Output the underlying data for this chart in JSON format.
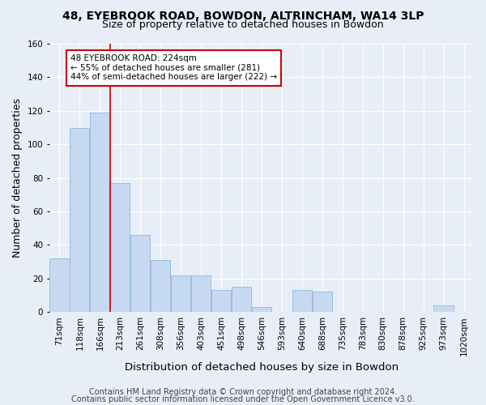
{
  "title": "48, EYEBROOK ROAD, BOWDON, ALTRINCHAM, WA14 3LP",
  "subtitle": "Size of property relative to detached houses in Bowdon",
  "xlabel": "Distribution of detached houses by size in Bowdon",
  "ylabel": "Number of detached properties",
  "footer1": "Contains HM Land Registry data © Crown copyright and database right 2024.",
  "footer2": "Contains public sector information licensed under the Open Government Licence v3.0.",
  "bar_labels": [
    "71sqm",
    "118sqm",
    "166sqm",
    "213sqm",
    "261sqm",
    "308sqm",
    "356sqm",
    "403sqm",
    "451sqm",
    "498sqm",
    "546sqm",
    "593sqm",
    "640sqm",
    "688sqm",
    "735sqm",
    "783sqm",
    "830sqm",
    "878sqm",
    "925sqm",
    "973sqm",
    "1020sqm"
  ],
  "bar_values": [
    32,
    110,
    119,
    77,
    46,
    31,
    22,
    22,
    13,
    15,
    3,
    0,
    13,
    12,
    0,
    0,
    0,
    0,
    0,
    4,
    0
  ],
  "bar_color": "#c6d9f0",
  "bar_edge_color": "#8fb8d8",
  "property_line_x": 2.5,
  "annotation_text": "48 EYEBROOK ROAD: 224sqm\n← 55% of detached houses are smaller (281)\n44% of semi-detached houses are larger (222) →",
  "annotation_box_color": "#ffffff",
  "annotation_box_edge": "#cc0000",
  "line_color": "#cc0000",
  "ylim": [
    0,
    160
  ],
  "yticks": [
    0,
    20,
    40,
    60,
    80,
    100,
    120,
    140,
    160
  ],
  "bg_color": "#e8eef8",
  "grid_color": "#ffffff",
  "title_fontsize": 10,
  "subtitle_fontsize": 9,
  "axis_label_fontsize": 9,
  "tick_fontsize": 7.5,
  "footer_fontsize": 7
}
